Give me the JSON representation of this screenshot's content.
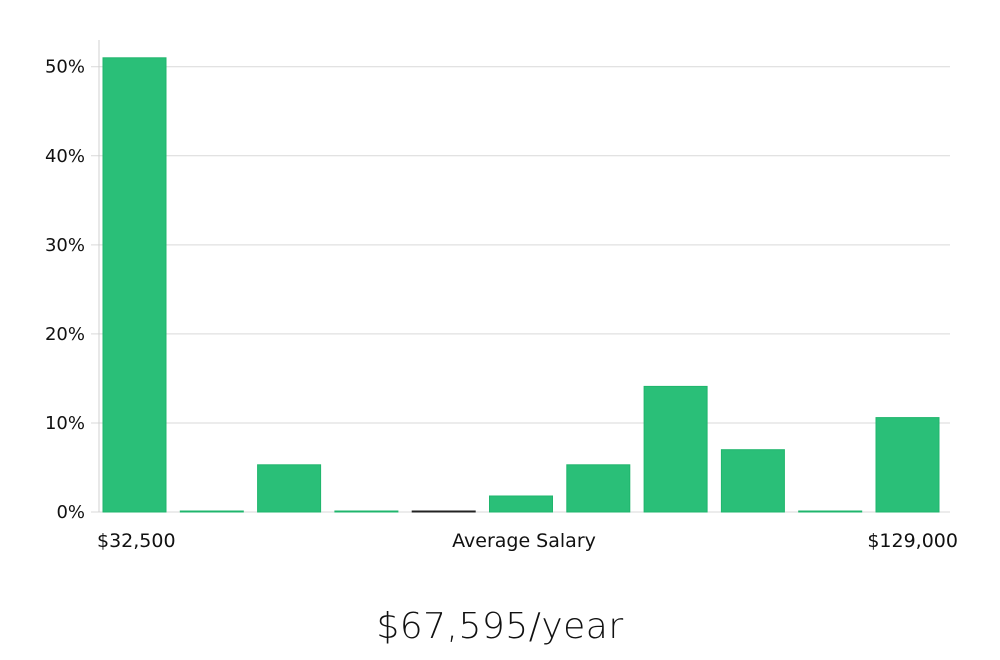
{
  "chart_data": {
    "type": "bar",
    "xlabel": "Average Salary",
    "x_range_labels": [
      "$32,500",
      "$129,000"
    ],
    "y_format": "percent",
    "ylim": [
      0,
      53
    ],
    "yticks": [
      0,
      10,
      20,
      30,
      40,
      50
    ],
    "ytick_labels": [
      "0%",
      "10%",
      "20%",
      "30%",
      "40%",
      "50%"
    ],
    "values": [
      51,
      0.1,
      5.3,
      0.1,
      0.1,
      1.8,
      5.3,
      14.1,
      7.0,
      0.1,
      10.6
    ],
    "grid": true,
    "legend": "none",
    "bar_color": "#2abf78",
    "bar_border_color": "#1fb56c",
    "special_bar_colors": {
      "4": "#222222"
    }
  },
  "summary": {
    "average_salary_text": "$67,595/year"
  }
}
